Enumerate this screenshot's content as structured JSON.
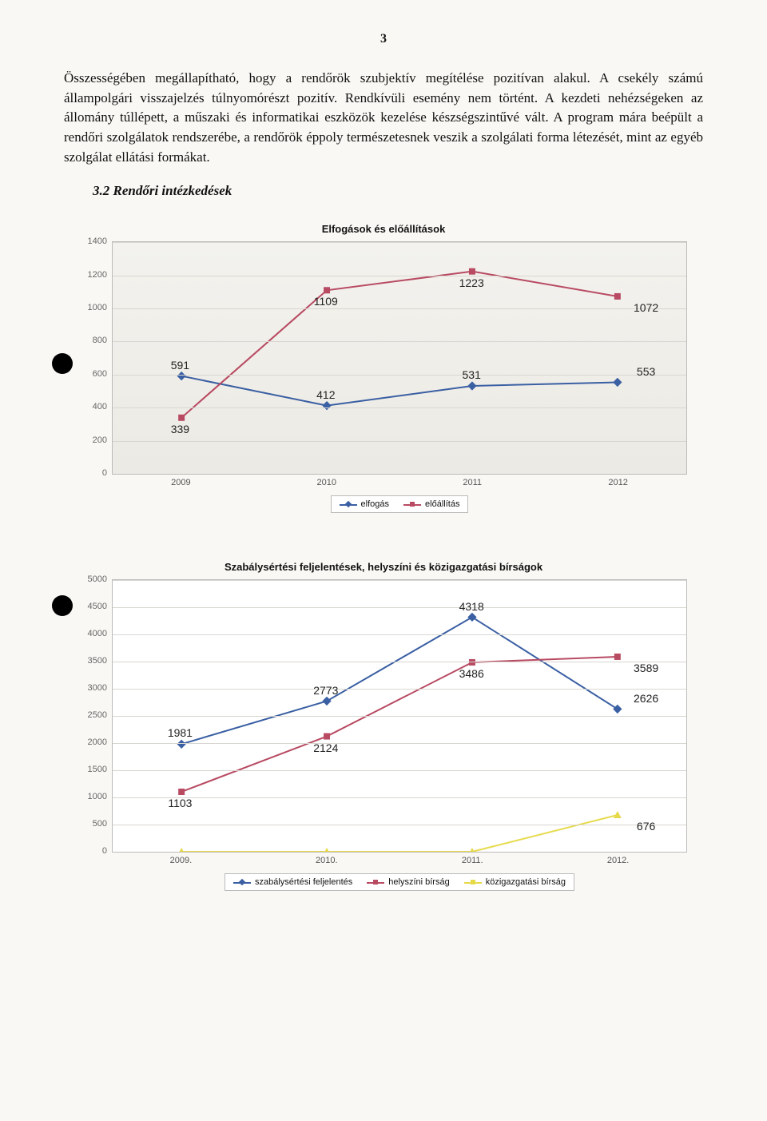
{
  "page_number": "3",
  "paragraph": "Összességében megállapítható, hogy a rendőrök szubjektív megítélése pozitívan alakul. A csekély számú állampolgári visszajelzés túlnyomórészt pozitív. Rendkívüli esemény nem történt. A kezdeti nehézségeken az állomány túllépett, a műszaki és informatikai eszközök kezelése készségszintűvé vált. A program mára beépült a rendőri szolgálatok rendszerébe, a rendőrök éppoly természetesnek veszik a szolgálati forma létezését, mint az egyéb szolgálat ellátási formákat.",
  "section_heading": "3.2 Rendőri intézkedések",
  "chart1": {
    "type": "line",
    "title": "Elfogások és előállítások",
    "categories": [
      "2009",
      "2010",
      "2011",
      "2012"
    ],
    "ylim": [
      0,
      1400
    ],
    "ytick_step": 200,
    "yticks": [
      "0",
      "200",
      "400",
      "600",
      "800",
      "1000",
      "1200",
      "1400"
    ],
    "background_color": "#f0efe9",
    "grid_color": "#d8d6d0",
    "series": [
      {
        "name": "elfogás",
        "color": "#3a5fa3",
        "marker": "diamond",
        "values": [
          591,
          412,
          531,
          553
        ],
        "labels": [
          "591",
          "412",
          "531",
          "553"
        ]
      },
      {
        "name": "előállítás",
        "color": "#b84a62",
        "marker": "square",
        "values": [
          339,
          1109,
          1223,
          1072
        ],
        "labels": [
          "339",
          "1109",
          "1223",
          "1072"
        ]
      }
    ],
    "legend": [
      "elfogás",
      "előállítás"
    ]
  },
  "chart2": {
    "type": "line",
    "title": "Szabálysértési feljelentések, helyszíni és közigazgatási bírságok",
    "categories": [
      "2009.",
      "2010.",
      "2011.",
      "2012."
    ],
    "ylim": [
      0,
      5000
    ],
    "ytick_step": 500,
    "yticks": [
      "0",
      "500",
      "1000",
      "1500",
      "2000",
      "2500",
      "3000",
      "3500",
      "4000",
      "4500",
      "5000"
    ],
    "background_color": "#ffffff",
    "grid_color": "#dddddd",
    "series": [
      {
        "name": "szabálysértési feljelentés",
        "color": "#3a5fa3",
        "marker": "diamond",
        "values": [
          1981,
          2773,
          4318,
          2626
        ],
        "labels": [
          "1981",
          "2773",
          "4318",
          "2626"
        ]
      },
      {
        "name": "helyszíni bírság",
        "color": "#b84a62",
        "marker": "square",
        "values": [
          1103,
          2124,
          3486,
          3589
        ],
        "labels": [
          "1103",
          "2124",
          "3486",
          "3589"
        ]
      },
      {
        "name": "közigazgatási bírság",
        "color": "#e6da4a",
        "marker": "triangle",
        "values": [
          0,
          0,
          0,
          676
        ],
        "labels": [
          "0",
          "0",
          "0",
          "676"
        ]
      }
    ],
    "legend": [
      "szabálysértési feljelentés",
      "helyszíni bírság",
      "közigazgatási bírság"
    ]
  }
}
